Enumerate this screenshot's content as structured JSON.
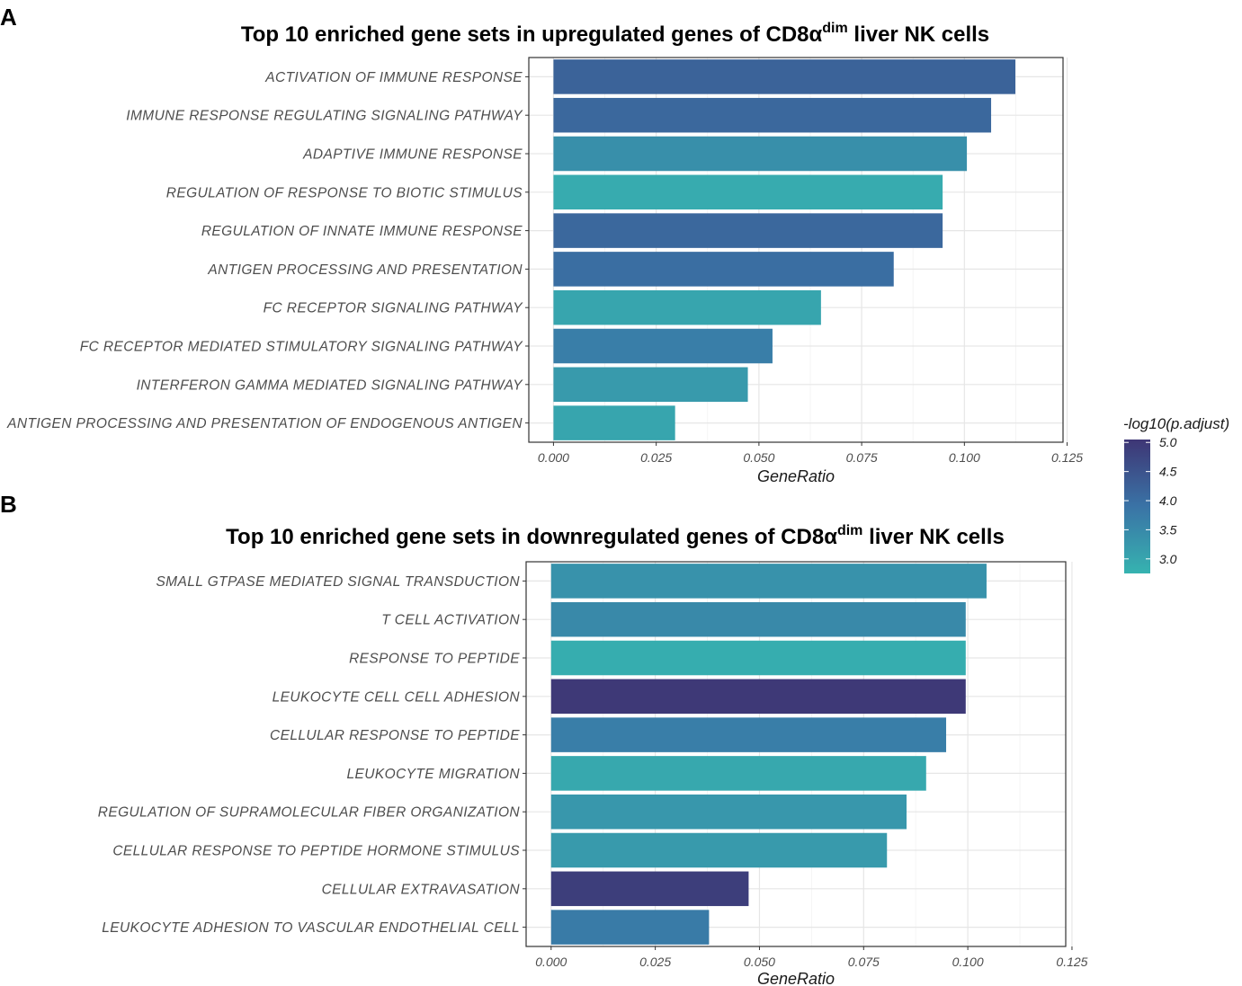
{
  "colors": {
    "scale_low": "#36b3b0",
    "scale_mid": "#3a73a6",
    "scale_high": "#3e3675"
  },
  "legend": {
    "title": "-log10(p.adjust)",
    "min": 2.75,
    "max": 5.05,
    "ticks": [
      "5.0",
      "4.5",
      "4.0",
      "3.5",
      "3.0"
    ],
    "tick_values": [
      5.0,
      4.5,
      4.0,
      3.5,
      3.0
    ]
  },
  "chart_data": [
    {
      "panel_label": "A",
      "type": "bar",
      "orientation": "horizontal",
      "title_main": "Top 10 enriched gene sets in upregulated genes of CD8α",
      "title_sup": "dim",
      "title_end": " liver NK cells",
      "xlabel": "GeneRatio",
      "xlim": [
        -0.006,
        0.124
      ],
      "xticks": [
        "0.000",
        "0.025",
        "0.050",
        "0.075",
        "0.100",
        "0.125"
      ],
      "xtick_values": [
        0,
        0.025,
        0.05,
        0.075,
        0.1,
        0.125
      ],
      "categories": [
        "ACTIVATION  OF  IMMUNE  RESPONSE",
        "IMMUNE  RESPONSE  REGULATING  SIGNALING  PATHWAY",
        "ADAPTIVE  IMMUNE  RESPONSE",
        "REGULATION  OF  RESPONSE  TO  BIOTIC  STIMULUS",
        "REGULATION  OF  INNATE  IMMUNE  RESPONSE",
        "ANTIGEN  PROCESSING  AND  PRESENTATION",
        "FC  RECEPTOR  SIGNALING  PATHWAY",
        "FC  RECEPTOR  MEDIATED  STIMULATORY  SIGNALING  PATHWAY",
        "INTERFERON  GAMMA  MEDIATED  SIGNALING  PATHWAY",
        "ANTIGEN  PROCESSING  AND  PRESENTATION  OF  ENDOGENOUS  ANTIGEN"
      ],
      "values": [
        0.1124,
        0.1065,
        0.1006,
        0.0947,
        0.0947,
        0.0828,
        0.0651,
        0.0533,
        0.0473,
        0.0296
      ],
      "color_values": [
        4.2,
        4.1,
        3.4,
        2.9,
        4.1,
        4.0,
        3.0,
        3.7,
        3.2,
        3.0
      ]
    },
    {
      "panel_label": "B",
      "type": "bar",
      "orientation": "horizontal",
      "title_main": "Top 10 enriched gene sets in downregulated genes of CD8α",
      "title_sup": "dim",
      "title_end": " liver NK cells",
      "xlabel": "GeneRatio",
      "xlim": [
        -0.006,
        0.1235
      ],
      "xticks": [
        "0.000",
        "0.025",
        "0.050",
        "0.075",
        "0.100",
        "0.125"
      ],
      "xtick_values": [
        0,
        0.025,
        0.05,
        0.075,
        0.1,
        0.125
      ],
      "categories": [
        "SMALL  GTPASE  MEDIATED  SIGNAL  TRANSDUCTION",
        "T  CELL  ACTIVATION",
        "RESPONSE  TO  PEPTIDE",
        "LEUKOCYTE  CELL  CELL  ADHESION",
        "CELLULAR  RESPONSE  TO  PEPTIDE",
        "LEUKOCYTE  MIGRATION",
        "REGULATION  OF  SUPRAMOLECULAR  FIBER  ORGANIZATION",
        "CELLULAR  RESPONSE  TO  PEPTIDE  HORMONE  STIMULUS",
        "CELLULAR  EXTRAVASATION",
        "LEUKOCYTE  ADHESION  TO  VASCULAR  ENDOTHELIAL  CELL"
      ],
      "values": [
        0.1045,
        0.0995,
        0.0995,
        0.0995,
        0.0948,
        0.09,
        0.0853,
        0.0806,
        0.0474,
        0.0379
      ],
      "color_values": [
        3.35,
        3.5,
        2.85,
        5.0,
        3.7,
        2.95,
        3.25,
        3.2,
        4.9,
        3.75
      ]
    }
  ]
}
